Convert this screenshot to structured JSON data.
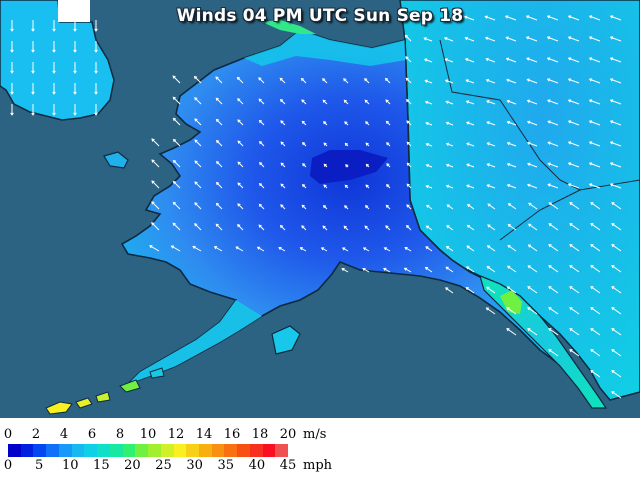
{
  "map": {
    "title": "Winds 04 PM UTC Sun Sep 18",
    "colors": {
      "ocean": "#2c6382",
      "land_low": "#1b4fe6",
      "land_mid": "#2f85f0",
      "land_high": "#12bff0",
      "calm_core": "#0a22c8"
    }
  },
  "legend": {
    "ms_unit": "m/s",
    "mph_unit": "mph",
    "ms_ticks": [
      "0",
      "2",
      "4",
      "6",
      "8",
      "10",
      "12",
      "14",
      "16",
      "18",
      "20"
    ],
    "mph_ticks": [
      "0",
      "5",
      "10",
      "15",
      "20",
      "25",
      "30",
      "35",
      "40",
      "45"
    ],
    "colors": [
      "#0000c8",
      "#0020e0",
      "#0048f0",
      "#1070f8",
      "#1898f8",
      "#18b8f0",
      "#10d0e8",
      "#10e0c8",
      "#18e8a0",
      "#30f070",
      "#70f040",
      "#a0f030",
      "#d0f028",
      "#f8f020",
      "#f8d018",
      "#f8b010",
      "#f89010",
      "#f87010",
      "#f85010",
      "#f83020",
      "#f81020",
      "#f05050"
    ]
  }
}
